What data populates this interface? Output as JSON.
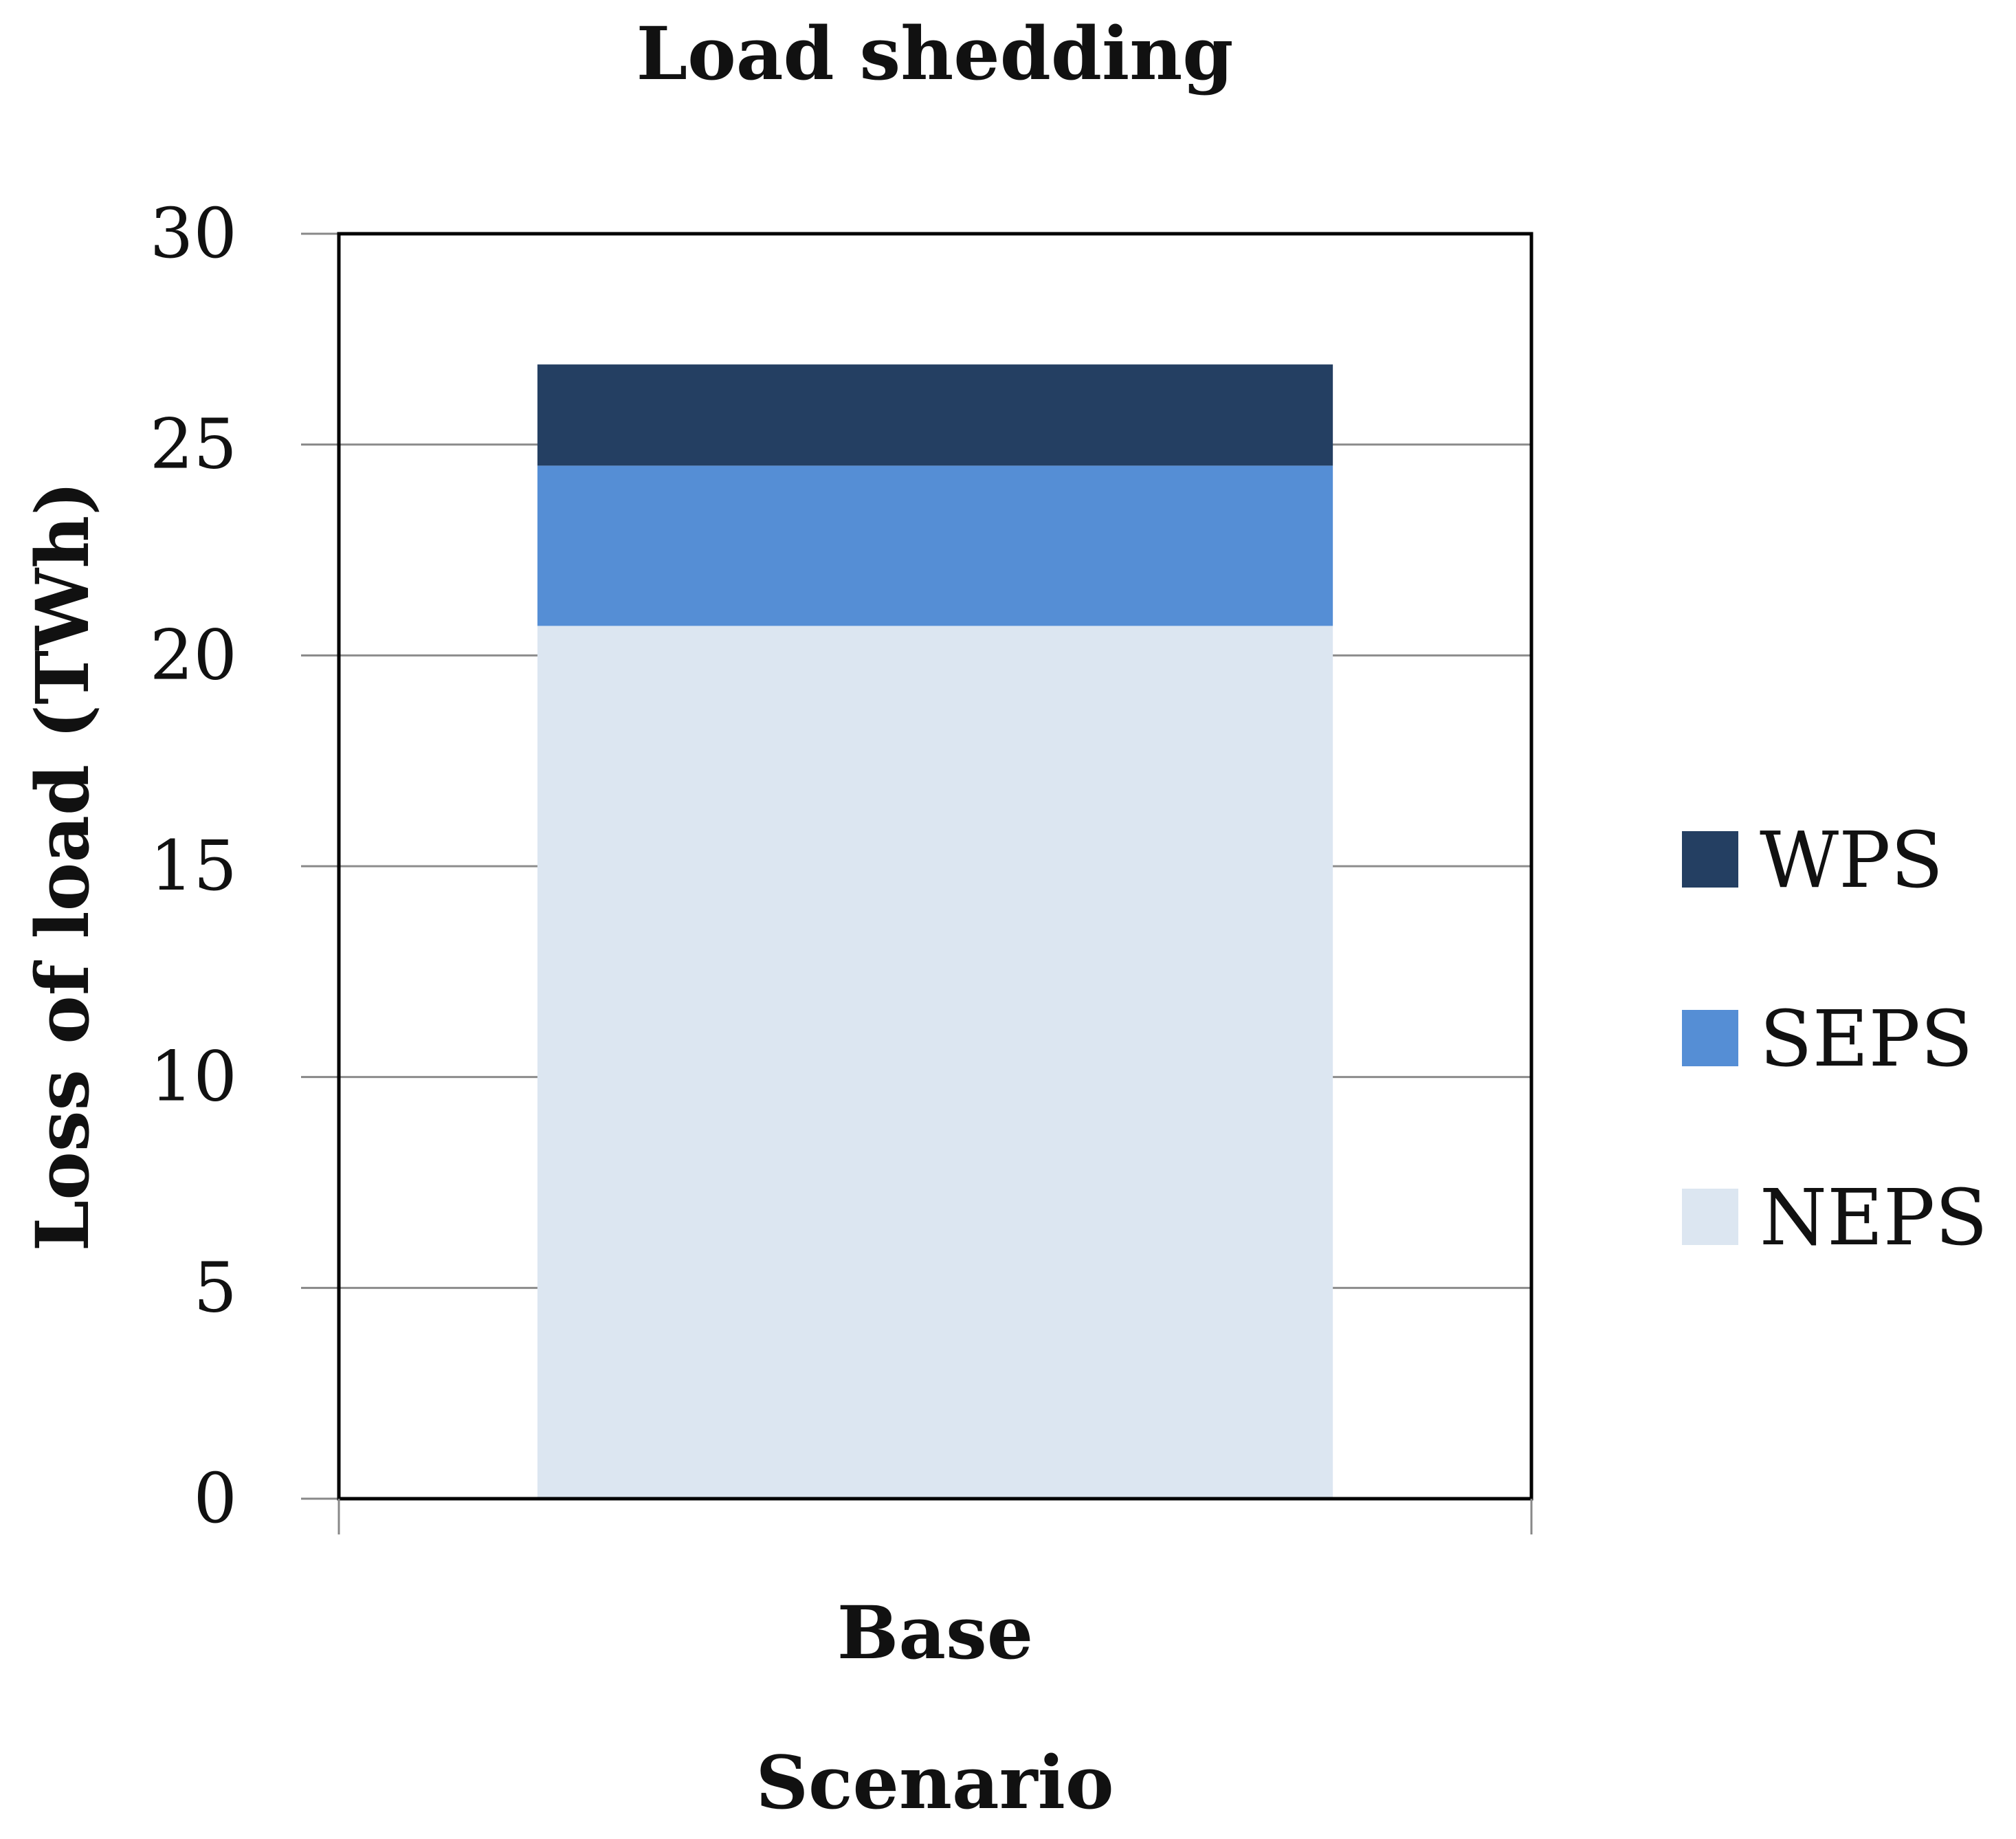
{
  "chart_data": {
    "type": "bar",
    "stacked": true,
    "title": "Load shedding",
    "xlabel": "Scenario",
    "ylabel": "Loss of load (TWh)",
    "categories": [
      "Base"
    ],
    "ylim": [
      0,
      30
    ],
    "yticks": [
      0,
      5,
      10,
      15,
      20,
      25,
      30
    ],
    "grid": true,
    "legend_position": "right",
    "series": [
      {
        "name": "NEPS",
        "values": [
          20.7
        ],
        "color": "#dce6f1"
      },
      {
        "name": "SEPS",
        "values": [
          3.8
        ],
        "color": "#558ed5"
      },
      {
        "name": "WPS",
        "values": [
          2.4
        ],
        "color": "#243f62"
      }
    ],
    "legend_order": [
      "WPS",
      "SEPS",
      "NEPS"
    ]
  }
}
